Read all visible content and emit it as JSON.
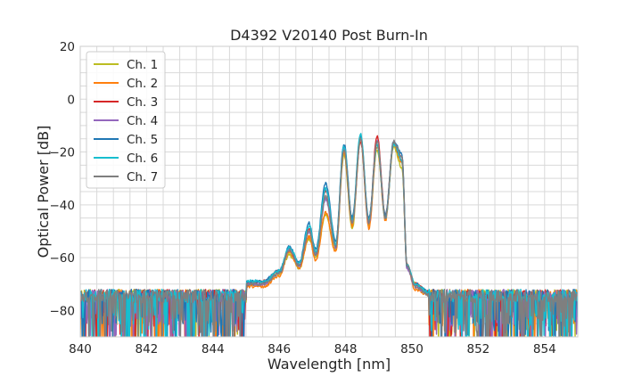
{
  "chart_data": {
    "type": "line",
    "title": "D4392 V20140 Post Burn-In",
    "xlabel": "Wavelength [nm]",
    "ylabel": "Optical Power [dB]",
    "xlim": [
      840,
      855
    ],
    "ylim": [
      -90,
      20
    ],
    "xticks": [
      840,
      842,
      844,
      846,
      848,
      850,
      852,
      854
    ],
    "yticks": [
      -80,
      -60,
      -40,
      -20,
      0,
      20
    ],
    "grid": true,
    "legend_position": "top-left",
    "noise_floor_db": -75,
    "series": [
      {
        "name": "Ch. 1",
        "color": "#bcbd22",
        "x": [
          845.0,
          845.5,
          846.0,
          846.3,
          846.6,
          846.9,
          847.1,
          847.4,
          847.7,
          847.95,
          848.2,
          848.45,
          848.7,
          848.95,
          849.2,
          849.45,
          849.7,
          849.85,
          850.1,
          850.5
        ],
        "y": [
          -70,
          -70,
          -66,
          -59,
          -64,
          -53,
          -60,
          -44,
          -57,
          -21,
          -49,
          -16,
          -48,
          -19,
          -45,
          -18,
          -26,
          -63,
          -70,
          -73
        ]
      },
      {
        "name": "Ch. 2",
        "color": "#ff7f0e",
        "x": [
          845.0,
          845.5,
          846.0,
          846.3,
          846.6,
          846.9,
          847.1,
          847.4,
          847.7,
          847.95,
          848.2,
          848.45,
          848.7,
          848.95,
          849.2,
          849.45,
          849.7,
          849.85,
          850.1,
          850.5
        ],
        "y": [
          -71,
          -71,
          -67,
          -58,
          -64,
          -52,
          -61,
          -43,
          -58,
          -20,
          -48,
          -15,
          -49,
          -18,
          -46,
          -17,
          -24,
          -64,
          -72,
          -74
        ]
      },
      {
        "name": "Ch. 3",
        "color": "#d62728",
        "x": [
          845.0,
          845.5,
          846.0,
          846.3,
          846.6,
          846.9,
          847.1,
          847.4,
          847.7,
          847.95,
          848.2,
          848.45,
          848.7,
          848.95,
          849.2,
          849.45,
          849.7,
          849.85,
          850.1,
          850.5
        ],
        "y": [
          -70,
          -69,
          -65,
          -57,
          -63,
          -49,
          -58,
          -35,
          -55,
          -18,
          -46,
          -16,
          -46,
          -14,
          -44,
          -17,
          -23,
          -63,
          -70,
          -73
        ]
      },
      {
        "name": "Ch. 4",
        "color": "#9467bd",
        "x": [
          845.0,
          845.5,
          846.0,
          846.3,
          846.6,
          846.9,
          847.1,
          847.4,
          847.7,
          847.95,
          848.2,
          848.45,
          848.7,
          848.95,
          849.2,
          849.45,
          849.7,
          849.85,
          850.1,
          850.5
        ],
        "y": [
          -70,
          -70,
          -66,
          -57,
          -63,
          -50,
          -59,
          -38,
          -56,
          -18,
          -47,
          -15,
          -47,
          -16,
          -45,
          -16,
          -22,
          -64,
          -71,
          -74
        ]
      },
      {
        "name": "Ch. 5",
        "color": "#1f77b4",
        "x": [
          845.0,
          845.5,
          846.0,
          846.3,
          846.6,
          846.9,
          847.1,
          847.4,
          847.7,
          847.95,
          848.2,
          848.45,
          848.7,
          848.95,
          849.2,
          849.45,
          849.7,
          849.85,
          850.1,
          850.5
        ],
        "y": [
          -69,
          -69,
          -65,
          -56,
          -62,
          -47,
          -57,
          -32,
          -54,
          -17,
          -45,
          -14,
          -45,
          -17,
          -44,
          -16,
          -21,
          -63,
          -70,
          -73
        ]
      },
      {
        "name": "Ch. 6",
        "color": "#17becf",
        "x": [
          845.0,
          845.5,
          846.0,
          846.3,
          846.6,
          846.9,
          847.1,
          847.4,
          847.7,
          847.95,
          848.2,
          848.45,
          848.7,
          848.95,
          849.2,
          849.45,
          849.7,
          849.85,
          850.1,
          850.5
        ],
        "y": [
          -69,
          -69,
          -65,
          -56,
          -62,
          -48,
          -58,
          -34,
          -55,
          -18,
          -46,
          -13,
          -46,
          -17,
          -45,
          -17,
          -23,
          -63,
          -70,
          -73
        ]
      },
      {
        "name": "Ch. 7",
        "color": "#7f7f7f",
        "x": [
          845.0,
          845.5,
          846.0,
          846.3,
          846.6,
          846.9,
          847.1,
          847.4,
          847.7,
          847.95,
          848.2,
          848.45,
          848.7,
          848.95,
          849.2,
          849.45,
          849.7,
          849.85,
          850.1,
          850.5
        ],
        "y": [
          -70,
          -70,
          -66,
          -57,
          -63,
          -50,
          -59,
          -37,
          -56,
          -19,
          -47,
          -15,
          -47,
          -16,
          -45,
          -16,
          -22,
          -63,
          -71,
          -74
        ]
      }
    ]
  }
}
